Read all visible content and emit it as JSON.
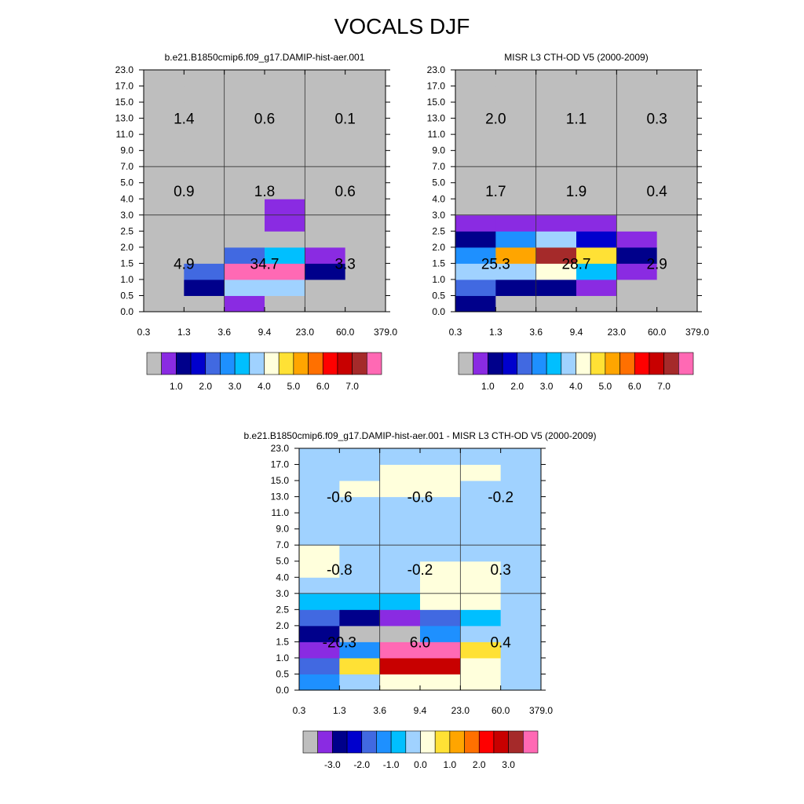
{
  "title": "VOCALS DJF",
  "palette": {
    "full": [
      "#bebebe",
      "#8a2be2",
      "#00008b",
      "#0000cd",
      "#4169e1",
      "#1e90ff",
      "#00bfff",
      "#a0d2ff",
      "#ffffdc",
      "#ffe135",
      "#ffa500",
      "#ff7000",
      "#ff0000",
      "#c80000",
      "#a52a2a",
      "#ff69b4"
    ],
    "bar_colors": [
      "#bebebe",
      "#8a2be2",
      "#00008b",
      "#0000cd",
      "#4169e1",
      "#1e90ff",
      "#00bfff",
      "#a0d2ff",
      "#ffffdc",
      "#ffe135",
      "#ffa500",
      "#ff7000",
      "#ff0000",
      "#c80000",
      "#a52a2a",
      "#ff69b4"
    ]
  },
  "chart_data": [
    {
      "type": "heatmap",
      "name": "model",
      "title": "b.e21.B1850cmip6.f09_g17.DAMIP-hist-aer.001",
      "x_tick_labels": [
        "0.3",
        "1.3",
        "3.6",
        "9.4",
        "23.0",
        "60.0",
        "379.0"
      ],
      "y_tick_labels": [
        "0.0",
        "0.5",
        "1.0",
        "1.5",
        "2.0",
        "2.5",
        "3.0",
        "4.0",
        "5.0",
        "7.0",
        "9.0",
        "11.0",
        "13.0",
        "15.0",
        "17.0",
        "23.0"
      ],
      "cell_colors": [
        [
          0,
          0,
          1,
          0,
          0,
          0
        ],
        [
          0,
          2,
          7,
          7,
          0,
          0
        ],
        [
          0,
          4,
          15,
          15,
          2,
          0
        ],
        [
          0,
          0,
          4,
          6,
          1,
          0
        ],
        [
          0,
          0,
          0,
          0,
          0,
          0
        ],
        [
          0,
          0,
          0,
          1,
          0,
          0
        ],
        [
          0,
          0,
          0,
          1,
          0,
          0
        ],
        [
          0,
          0,
          0,
          0,
          0,
          0
        ],
        [
          0,
          0,
          0,
          0,
          0,
          0
        ],
        [
          0,
          0,
          0,
          0,
          0,
          0
        ],
        [
          0,
          0,
          0,
          0,
          0,
          0
        ],
        [
          0,
          0,
          0,
          0,
          0,
          0
        ],
        [
          0,
          0,
          0,
          0,
          0,
          0
        ],
        [
          0,
          0,
          0,
          0,
          0,
          0
        ],
        [
          0,
          0,
          0,
          0,
          0,
          0
        ]
      ],
      "region_labels": [
        {
          "text": "1.4",
          "col": 0,
          "row": "high"
        },
        {
          "text": "0.6",
          "col": 1,
          "row": "high"
        },
        {
          "text": "0.1",
          "col": 2,
          "row": "high"
        },
        {
          "text": "0.9",
          "col": 0,
          "row": "mid"
        },
        {
          "text": "1.8",
          "col": 1,
          "row": "mid"
        },
        {
          "text": "0.6",
          "col": 2,
          "row": "mid"
        },
        {
          "text": "4.9",
          "col": 0,
          "row": "low"
        },
        {
          "text": "34.7",
          "col": 1,
          "row": "low"
        },
        {
          "text": "3.3",
          "col": 2,
          "row": "low"
        }
      ],
      "colorbar_labels": [
        "1.0",
        "2.0",
        "3.0",
        "4.0",
        "5.0",
        "6.0",
        "7.0"
      ]
    },
    {
      "type": "heatmap",
      "name": "obs",
      "title": "MISR L3 CTH-OD V5 (2000-2009)",
      "x_tick_labels": [
        "0.3",
        "1.3",
        "3.6",
        "9.4",
        "23.0",
        "60.0",
        "379.0"
      ],
      "y_tick_labels": [
        "0.0",
        "0.5",
        "1.0",
        "1.5",
        "2.0",
        "2.5",
        "3.0",
        "4.0",
        "5.0",
        "7.0",
        "9.0",
        "11.0",
        "13.0",
        "15.0",
        "17.0",
        "23.0"
      ],
      "cell_colors": [
        [
          2,
          0,
          0,
          0,
          0,
          0
        ],
        [
          4,
          2,
          2,
          1,
          0,
          0
        ],
        [
          7,
          7,
          8,
          6,
          1,
          0
        ],
        [
          5,
          10,
          14,
          9,
          2,
          0
        ],
        [
          2,
          5,
          7,
          3,
          1,
          0
        ],
        [
          1,
          1,
          1,
          1,
          0,
          0
        ],
        [
          0,
          0,
          0,
          0,
          0,
          0
        ],
        [
          0,
          0,
          0,
          0,
          0,
          0
        ],
        [
          0,
          0,
          0,
          0,
          0,
          0
        ],
        [
          0,
          0,
          0,
          0,
          0,
          0
        ],
        [
          0,
          0,
          0,
          0,
          0,
          0
        ],
        [
          0,
          0,
          0,
          0,
          0,
          0
        ],
        [
          0,
          0,
          0,
          0,
          0,
          0
        ],
        [
          0,
          0,
          0,
          0,
          0,
          0
        ],
        [
          0,
          0,
          0,
          0,
          0,
          0
        ]
      ],
      "region_labels": [
        {
          "text": "2.0",
          "col": 0,
          "row": "high"
        },
        {
          "text": "1.1",
          "col": 1,
          "row": "high"
        },
        {
          "text": "0.3",
          "col": 2,
          "row": "high"
        },
        {
          "text": "1.7",
          "col": 0,
          "row": "mid"
        },
        {
          "text": "1.9",
          "col": 1,
          "row": "mid"
        },
        {
          "text": "0.4",
          "col": 2,
          "row": "mid"
        },
        {
          "text": "25.3",
          "col": 0,
          "row": "low"
        },
        {
          "text": "28.7",
          "col": 1,
          "row": "low"
        },
        {
          "text": "2.9",
          "col": 2,
          "row": "low"
        }
      ],
      "colorbar_labels": [
        "1.0",
        "2.0",
        "3.0",
        "4.0",
        "5.0",
        "6.0",
        "7.0"
      ]
    },
    {
      "type": "heatmap",
      "name": "diff",
      "title": "b.e21.B1850cmip6.f09_g17.DAMIP-hist-aer.001 - MISR L3 CTH-OD V5 (2000-2009)",
      "x_tick_labels": [
        "0.3",
        "1.3",
        "3.6",
        "9.4",
        "23.0",
        "60.0",
        "379.0"
      ],
      "y_tick_labels": [
        "0.0",
        "0.5",
        "1.0",
        "1.5",
        "2.0",
        "2.5",
        "3.0",
        "4.0",
        "5.0",
        "7.0",
        "9.0",
        "11.0",
        "13.0",
        "15.0",
        "17.0",
        "23.0"
      ],
      "cell_colors": [
        [
          5,
          7,
          8,
          8,
          8,
          7
        ],
        [
          4,
          9,
          13,
          13,
          8,
          7
        ],
        [
          1,
          5,
          15,
          15,
          9,
          7
        ],
        [
          2,
          0,
          0,
          5,
          7,
          7
        ],
        [
          4,
          2,
          1,
          4,
          6,
          7
        ],
        [
          6,
          6,
          6,
          8,
          8,
          7
        ],
        [
          7,
          7,
          7,
          8,
          8,
          7
        ],
        [
          8,
          7,
          7,
          8,
          8,
          7
        ],
        [
          8,
          7,
          7,
          7,
          7,
          7
        ],
        [
          7,
          7,
          7,
          7,
          7,
          7
        ],
        [
          7,
          7,
          7,
          7,
          7,
          7
        ],
        [
          7,
          7,
          7,
          7,
          7,
          7
        ],
        [
          7,
          8,
          8,
          8,
          7,
          7
        ],
        [
          7,
          7,
          8,
          8,
          8,
          7
        ],
        [
          7,
          7,
          7,
          7,
          7,
          7
        ]
      ],
      "region_labels": [
        {
          "text": "-0.6",
          "col": 0,
          "row": "high"
        },
        {
          "text": "-0.6",
          "col": 1,
          "row": "high"
        },
        {
          "text": "-0.2",
          "col": 2,
          "row": "high"
        },
        {
          "text": "-0.8",
          "col": 0,
          "row": "mid"
        },
        {
          "text": "-0.2",
          "col": 1,
          "row": "mid"
        },
        {
          "text": "0.3",
          "col": 2,
          "row": "mid"
        },
        {
          "text": "-20.3",
          "col": 0,
          "row": "low"
        },
        {
          "text": "6.0",
          "col": 1,
          "row": "low"
        },
        {
          "text": "0.4",
          "col": 2,
          "row": "low"
        }
      ],
      "colorbar_labels": [
        "-3.0",
        "-2.0",
        "-1.0",
        "0.0",
        "1.0",
        "2.0",
        "3.0"
      ]
    }
  ]
}
